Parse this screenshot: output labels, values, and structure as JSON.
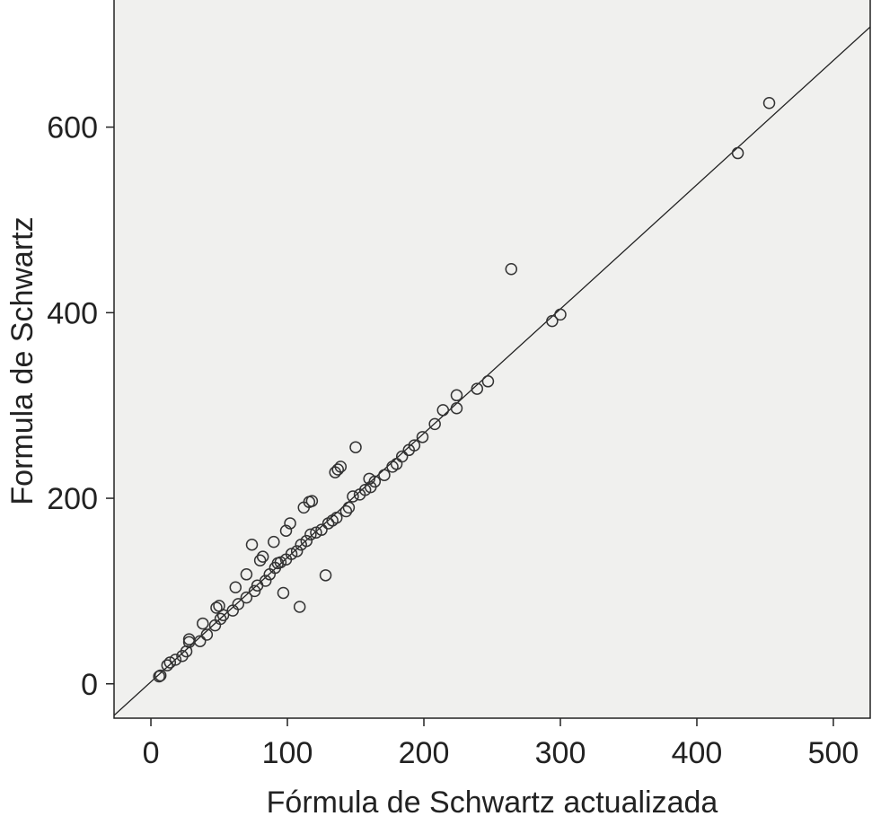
{
  "chart_data": {
    "type": "scatter",
    "x_label": "Fórmula de Schwartz actualizada",
    "y_label": "Formula de Schwartz",
    "xlim": [
      -27,
      527
    ],
    "ylim": [
      -37,
      737
    ],
    "xticks": [
      0,
      100,
      200,
      300,
      400,
      500
    ],
    "yticks": [
      0,
      200,
      400,
      600
    ],
    "background": "#f0f0ee",
    "series": [
      {
        "color": "#333333",
        "x": [
          6,
          7,
          12,
          14,
          18,
          23,
          26,
          28,
          28,
          36,
          38,
          41,
          47,
          48,
          50,
          51,
          53,
          60,
          62,
          64,
          70,
          70,
          74,
          76,
          78,
          80,
          82,
          84,
          87,
          90,
          91,
          93,
          95,
          97,
          99,
          99,
          102,
          103,
          107,
          109,
          110,
          112,
          114,
          116,
          118,
          117,
          121,
          125,
          128,
          130,
          133,
          135,
          137,
          139,
          136,
          143,
          145,
          148,
          150,
          153,
          157,
          160,
          161,
          164,
          171,
          177,
          180,
          184,
          189,
          193,
          199,
          208,
          214,
          224,
          224,
          239,
          247,
          264,
          294,
          300,
          430,
          453
        ],
        "y": [
          8,
          9,
          20,
          23,
          26,
          30,
          35,
          45,
          48,
          46,
          65,
          53,
          63,
          82,
          84,
          70,
          74,
          79,
          104,
          86,
          93,
          118,
          150,
          100,
          106,
          133,
          137,
          111,
          118,
          153,
          125,
          130,
          131,
          98,
          165,
          134,
          173,
          140,
          143,
          83,
          150,
          190,
          154,
          196,
          197,
          161,
          163,
          166,
          117,
          173,
          176,
          228,
          231,
          234,
          179,
          186,
          190,
          202,
          255,
          204,
          209,
          221,
          212,
          218,
          225,
          234,
          237,
          245,
          252,
          257,
          266,
          280,
          295,
          311,
          297,
          318,
          326,
          447,
          391,
          398,
          572,
          626
        ]
      }
    ],
    "fit_line": {
      "color": "#222222",
      "x": [
        -27,
        527
      ],
      "y": [
        -34,
        708
      ]
    }
  }
}
